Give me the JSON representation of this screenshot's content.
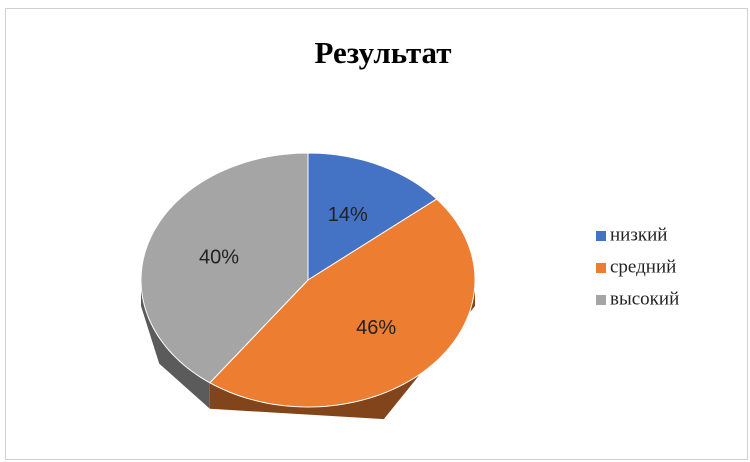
{
  "chart_data": {
    "type": "pie",
    "title": "Результат",
    "categories": [
      "низкий",
      "средний",
      "высокий"
    ],
    "values": [
      14,
      46,
      40
    ],
    "value_labels": [
      "14%",
      "46%",
      "40%"
    ],
    "colors": [
      "#4472c4",
      "#ed7d31",
      "#a5a5a5"
    ],
    "legend": "right"
  }
}
